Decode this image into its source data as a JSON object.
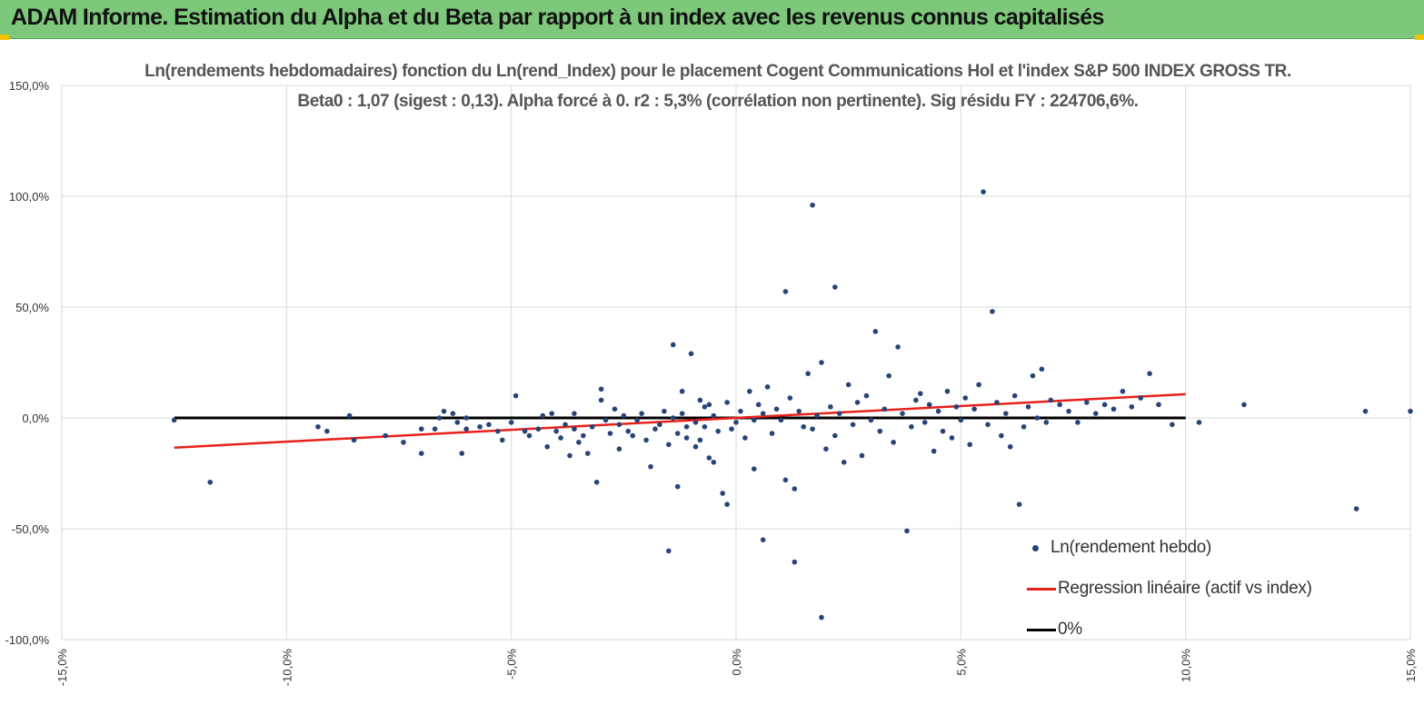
{
  "header": {
    "title": "ADAM Informe. Estimation du Alpha et du Beta par rapport à un index avec les revenus connus capitalisés"
  },
  "colors": {
    "banner": "#7dc87a",
    "points": "#264478",
    "regression": "#e8201a",
    "zero_line": "#000000",
    "grid": "#d9d9d9"
  },
  "chart_data": {
    "type": "scatter",
    "title": "Ln(rendements hebdomadaires) fonction du Ln(rend_Index) pour le placement Cogent Communications Hol et l'index S&P 500 INDEX GROSS TR.",
    "subtitle": "Beta0 : 1,07 (sigest : 0,13). Alpha forcé à 0. r2 : 5,3% (corrélation non pertinente). Sig résidu FY : 224706,6%.",
    "xlim": [
      -0.15,
      0.15
    ],
    "ylim": [
      -1.0,
      1.5
    ],
    "x_ticks": [
      -0.15,
      -0.1,
      -0.05,
      0.0,
      0.05,
      0.1,
      0.15
    ],
    "x_tick_labels": [
      "-15,0%",
      "-10,0%",
      "-5,0%",
      "0,0%",
      "5,0%",
      "10,0%",
      "15,0%"
    ],
    "y_ticks": [
      1.5,
      1.0,
      0.5,
      0.0,
      -0.5,
      -1.0
    ],
    "y_tick_labels": [
      "150,0%",
      "100,0%",
      "50,0%",
      "0,0%",
      "-50,0%",
      "-100,0%"
    ],
    "grid": true,
    "legend_position": "bottom-right",
    "series": [
      {
        "name": "Ln(rendement hebdo)",
        "kind": "points",
        "points": [
          [
            -0.125,
            -0.01
          ],
          [
            -0.117,
            -0.29
          ],
          [
            -0.093,
            -0.04
          ],
          [
            -0.091,
            -0.06
          ],
          [
            -0.086,
            0.01
          ],
          [
            -0.085,
            -0.1
          ],
          [
            -0.078,
            -0.08
          ],
          [
            -0.074,
            -0.11
          ],
          [
            -0.07,
            -0.05
          ],
          [
            -0.07,
            -0.16
          ],
          [
            -0.067,
            -0.05
          ],
          [
            -0.066,
            0.0
          ],
          [
            -0.065,
            0.03
          ],
          [
            -0.062,
            -0.02
          ],
          [
            -0.06,
            -0.05
          ],
          [
            -0.063,
            0.02
          ],
          [
            -0.061,
            -0.16
          ],
          [
            -0.06,
            0.0
          ],
          [
            -0.057,
            -0.04
          ],
          [
            -0.055,
            -0.03
          ],
          [
            -0.053,
            -0.06
          ],
          [
            -0.052,
            -0.1
          ],
          [
            -0.05,
            -0.02
          ],
          [
            -0.049,
            0.1
          ],
          [
            -0.047,
            -0.06
          ],
          [
            -0.046,
            -0.08
          ],
          [
            -0.044,
            -0.05
          ],
          [
            -0.043,
            0.01
          ],
          [
            -0.042,
            -0.13
          ],
          [
            -0.041,
            0.02
          ],
          [
            -0.04,
            -0.06
          ],
          [
            -0.039,
            -0.09
          ],
          [
            -0.038,
            -0.03
          ],
          [
            -0.037,
            -0.17
          ],
          [
            -0.036,
            -0.05
          ],
          [
            -0.036,
            0.02
          ],
          [
            -0.035,
            -0.11
          ],
          [
            -0.034,
            -0.08
          ],
          [
            -0.033,
            -0.16
          ],
          [
            -0.032,
            -0.04
          ],
          [
            -0.031,
            -0.29
          ],
          [
            -0.03,
            0.13
          ],
          [
            -0.03,
            0.08
          ],
          [
            -0.029,
            -0.01
          ],
          [
            -0.028,
            -0.07
          ],
          [
            -0.027,
            0.04
          ],
          [
            -0.026,
            -0.03
          ],
          [
            -0.026,
            -0.14
          ],
          [
            -0.025,
            0.01
          ],
          [
            -0.024,
            -0.06
          ],
          [
            -0.023,
            -0.08
          ],
          [
            -0.022,
            -0.01
          ],
          [
            -0.021,
            0.02
          ],
          [
            -0.02,
            -0.1
          ],
          [
            -0.019,
            -0.22
          ],
          [
            -0.018,
            -0.05
          ],
          [
            -0.017,
            -0.03
          ],
          [
            -0.016,
            0.03
          ],
          [
            -0.015,
            -0.12
          ],
          [
            -0.014,
            0.0
          ],
          [
            -0.013,
            -0.07
          ],
          [
            -0.012,
            0.02
          ],
          [
            -0.011,
            -0.04
          ],
          [
            -0.01,
            0.29
          ],
          [
            -0.009,
            -0.02
          ],
          [
            -0.008,
            -0.1
          ],
          [
            -0.007,
            0.05
          ],
          [
            -0.006,
            -0.18
          ],
          [
            -0.005,
            0.01
          ],
          [
            -0.004,
            -0.06
          ],
          [
            -0.003,
            -0.34
          ],
          [
            -0.002,
            -0.39
          ],
          [
            -0.002,
            0.07
          ],
          [
            -0.001,
            -0.05
          ],
          [
            -0.015,
            -0.6
          ],
          [
            -0.013,
            -0.31
          ],
          [
            -0.014,
            0.33
          ],
          [
            -0.012,
            0.12
          ],
          [
            -0.011,
            -0.09
          ],
          [
            -0.009,
            -0.13
          ],
          [
            -0.008,
            0.08
          ],
          [
            -0.007,
            -0.04
          ],
          [
            -0.006,
            0.06
          ],
          [
            -0.005,
            -0.2
          ],
          [
            0.0,
            -0.02
          ],
          [
            0.001,
            0.03
          ],
          [
            0.002,
            -0.09
          ],
          [
            0.003,
            0.12
          ],
          [
            0.004,
            -0.23
          ],
          [
            0.004,
            -0.01
          ],
          [
            0.005,
            0.06
          ],
          [
            0.006,
            -0.55
          ],
          [
            0.006,
            0.02
          ],
          [
            0.007,
            0.14
          ],
          [
            0.008,
            -0.07
          ],
          [
            0.009,
            0.04
          ],
          [
            0.01,
            -0.01
          ],
          [
            0.011,
            -0.28
          ],
          [
            0.011,
            0.57
          ],
          [
            0.012,
            0.09
          ],
          [
            0.013,
            -0.65
          ],
          [
            0.013,
            -0.32
          ],
          [
            0.014,
            0.03
          ],
          [
            0.015,
            -0.04
          ],
          [
            0.016,
            0.2
          ],
          [
            0.017,
            -0.05
          ],
          [
            0.017,
            0.96
          ],
          [
            0.018,
            0.01
          ],
          [
            0.019,
            -0.9
          ],
          [
            0.019,
            0.25
          ],
          [
            0.02,
            -0.14
          ],
          [
            0.021,
            0.05
          ],
          [
            0.022,
            -0.08
          ],
          [
            0.022,
            0.59
          ],
          [
            0.023,
            0.02
          ],
          [
            0.024,
            -0.2
          ],
          [
            0.025,
            0.15
          ],
          [
            0.026,
            -0.03
          ],
          [
            0.027,
            0.07
          ],
          [
            0.028,
            -0.17
          ],
          [
            0.029,
            0.1
          ],
          [
            0.03,
            -0.01
          ],
          [
            0.031,
            0.39
          ],
          [
            0.032,
            -0.06
          ],
          [
            0.033,
            0.04
          ],
          [
            0.034,
            0.19
          ],
          [
            0.035,
            -0.11
          ],
          [
            0.036,
            0.32
          ],
          [
            0.037,
            0.02
          ],
          [
            0.038,
            -0.51
          ],
          [
            0.039,
            -0.04
          ],
          [
            0.04,
            0.08
          ],
          [
            0.041,
            0.11
          ],
          [
            0.042,
            -0.02
          ],
          [
            0.043,
            0.06
          ],
          [
            0.044,
            -0.15
          ],
          [
            0.045,
            0.03
          ],
          [
            0.046,
            -0.06
          ],
          [
            0.047,
            0.12
          ],
          [
            0.048,
            -0.09
          ],
          [
            0.049,
            0.05
          ],
          [
            0.05,
            -0.01
          ],
          [
            0.051,
            0.09
          ],
          [
            0.052,
            -0.12
          ],
          [
            0.053,
            0.04
          ],
          [
            0.054,
            0.15
          ],
          [
            0.055,
            1.02
          ],
          [
            0.056,
            -0.03
          ],
          [
            0.057,
            0.48
          ],
          [
            0.058,
            0.07
          ],
          [
            0.059,
            -0.08
          ],
          [
            0.06,
            0.02
          ],
          [
            0.061,
            -0.13
          ],
          [
            0.062,
            0.1
          ],
          [
            0.063,
            -0.39
          ],
          [
            0.064,
            -0.04
          ],
          [
            0.065,
            0.05
          ],
          [
            0.066,
            0.19
          ],
          [
            0.067,
            0.0
          ],
          [
            0.068,
            0.22
          ],
          [
            0.069,
            -0.02
          ],
          [
            0.07,
            0.08
          ],
          [
            0.072,
            0.06
          ],
          [
            0.074,
            0.03
          ],
          [
            0.076,
            -0.02
          ],
          [
            0.078,
            0.07
          ],
          [
            0.08,
            0.02
          ],
          [
            0.082,
            0.06
          ],
          [
            0.084,
            0.04
          ],
          [
            0.086,
            0.12
          ],
          [
            0.088,
            0.05
          ],
          [
            0.09,
            0.09
          ],
          [
            0.092,
            0.2
          ],
          [
            0.094,
            0.06
          ],
          [
            0.097,
            -0.03
          ],
          [
            0.103,
            -0.02
          ],
          [
            0.113,
            0.06
          ],
          [
            0.138,
            -0.41
          ],
          [
            0.14,
            0.03
          ],
          [
            0.163,
            0.03
          ]
        ]
      },
      {
        "name": "Regression linéaire (actif vs index)",
        "kind": "line",
        "x": [
          -0.125,
          0.1
        ],
        "y": [
          -0.134,
          0.107
        ]
      },
      {
        "name": "0%",
        "kind": "line",
        "x": [
          -0.125,
          0.1
        ],
        "y": [
          0.0,
          0.0
        ]
      }
    ]
  }
}
